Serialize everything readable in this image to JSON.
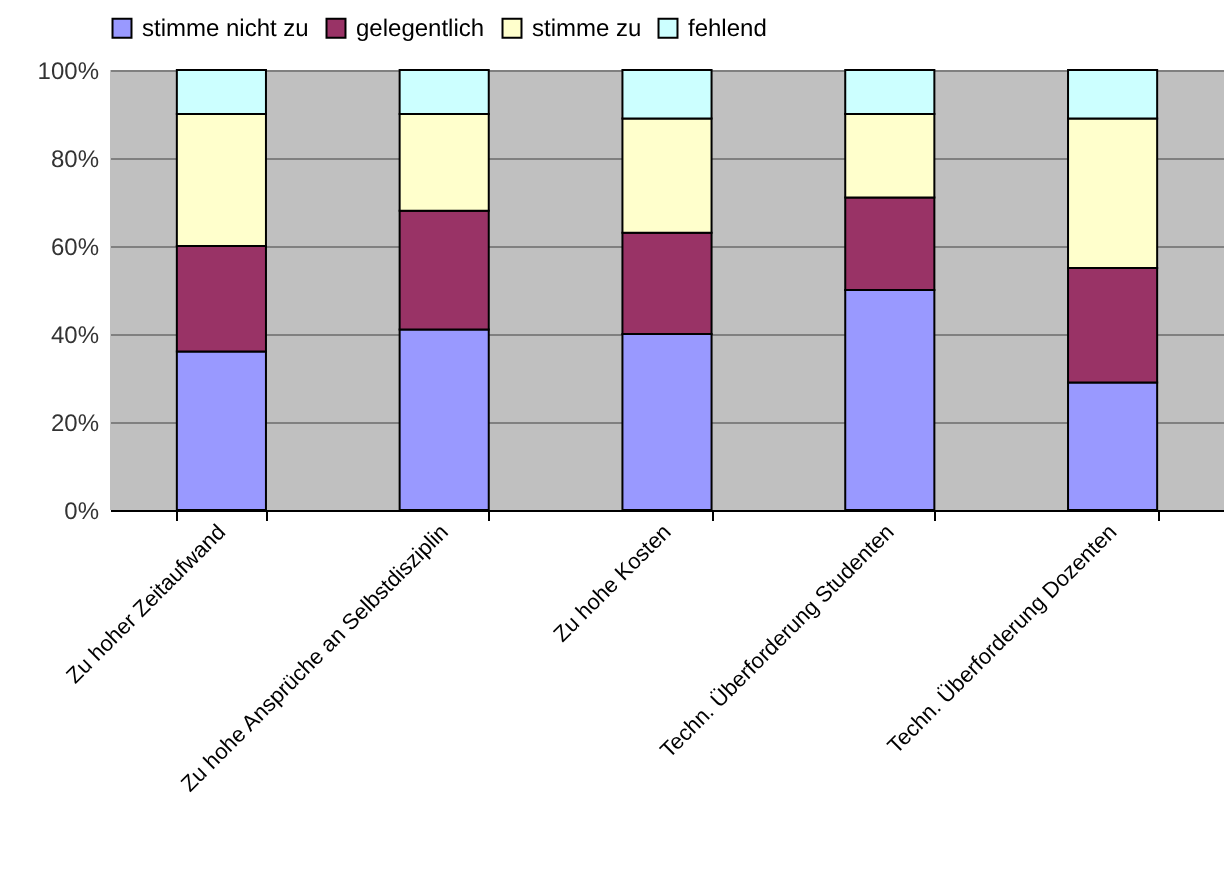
{
  "chart_data": {
    "type": "bar",
    "stacked": true,
    "legend": "top",
    "grid": "y",
    "categories": [
      "Zu hoher Zeitaufwand",
      "Zu hohe Ansprüche an Selbstdisziplin",
      "Zu hohe Kosten",
      "Techn. Überforderung Studenten",
      "Techn. Überforderung Dozenten"
    ],
    "series": [
      {
        "name": "stimme nicht zu",
        "color": "#9999ff",
        "values": [
          36,
          41,
          40,
          50,
          29
        ]
      },
      {
        "name": "gelegentlich",
        "color": "#993366",
        "values": [
          24,
          27,
          23,
          21,
          26
        ]
      },
      {
        "name": "stimme zu",
        "color": "#ffffcc",
        "values": [
          30,
          22,
          26,
          19,
          34
        ]
      },
      {
        "name": "fehlend",
        "color": "#ccffff",
        "values": [
          10,
          10,
          11,
          10,
          11
        ]
      }
    ],
    "ylim": [
      0,
      100
    ],
    "yticks": [
      {
        "value": 0,
        "label": "0%"
      },
      {
        "value": 20,
        "label": "20%"
      },
      {
        "value": 40,
        "label": "40%"
      },
      {
        "value": 60,
        "label": "60%"
      },
      {
        "value": 80,
        "label": "80%"
      },
      {
        "value": 100,
        "label": "100%"
      }
    ]
  }
}
